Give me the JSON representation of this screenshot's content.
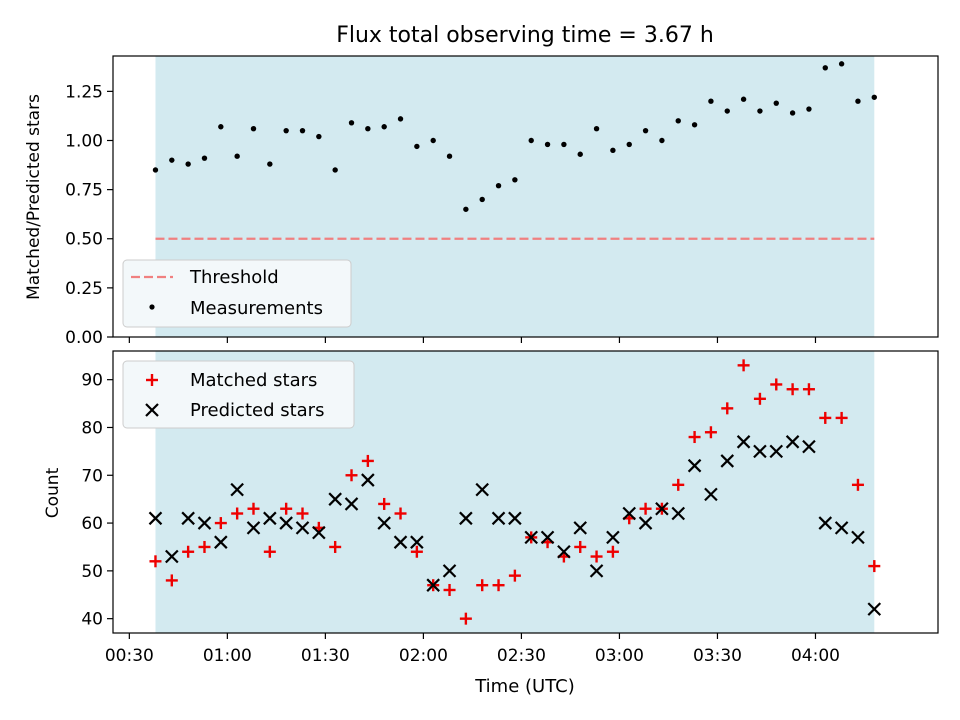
{
  "title": "Flux total observing time = 3.67 h",
  "xlabel": "Time (UTC)",
  "xticks": [
    "00:30",
    "01:00",
    "01:30",
    "02:00",
    "02:30",
    "03:00",
    "03:30",
    "04:00"
  ],
  "colors": {
    "band": "#d3eaf0",
    "threshold": "#f08080",
    "measurements": "#000000",
    "matched": "#ee0000",
    "predicted": "#000000"
  },
  "chart_data": [
    {
      "type": "scatter",
      "ylabel": "Matched/Predicted stars",
      "ylim": [
        0,
        1.43
      ],
      "yticks": [
        "0.00",
        "0.25",
        "0.50",
        "0.75",
        "1.00",
        "1.25"
      ],
      "legend_position": "lower-left",
      "legend": [
        {
          "label": "Threshold",
          "style": "dashed-line"
        },
        {
          "label": "Measurements",
          "style": "dot"
        }
      ],
      "threshold": 0.5,
      "shaded_range_hh_mm": [
        "00:38",
        "04:18"
      ],
      "series": [
        {
          "name": "Measurements",
          "x_time": [
            "00:38",
            "00:43",
            "00:48",
            "00:53",
            "00:58",
            "01:03",
            "01:08",
            "01:13",
            "01:18",
            "01:23",
            "01:28",
            "01:33",
            "01:38",
            "01:43",
            "01:48",
            "01:53",
            "01:58",
            "02:03",
            "02:08",
            "02:13",
            "02:18",
            "02:23",
            "02:28",
            "02:33",
            "02:38",
            "02:43",
            "02:48",
            "02:53",
            "02:58",
            "03:03",
            "03:08",
            "03:13",
            "03:18",
            "03:23",
            "03:28",
            "03:33",
            "03:38",
            "03:43",
            "03:48",
            "03:53",
            "03:58",
            "04:03",
            "04:08",
            "04:13",
            "04:18"
          ],
          "y": [
            0.85,
            0.9,
            0.88,
            0.91,
            1.07,
            0.92,
            1.06,
            0.88,
            1.05,
            1.05,
            1.02,
            0.85,
            1.09,
            1.06,
            1.07,
            1.11,
            0.97,
            1.0,
            0.92,
            0.65,
            0.7,
            0.77,
            0.8,
            1.0,
            0.98,
            0.98,
            0.93,
            1.06,
            0.95,
            0.98,
            1.05,
            1.0,
            1.1,
            1.08,
            1.2,
            1.15,
            1.21,
            1.15,
            1.19,
            1.14,
            1.16,
            1.37,
            1.39,
            1.2,
            1.22
          ]
        }
      ]
    },
    {
      "type": "scatter",
      "ylabel": "Count",
      "ylim": [
        37,
        96
      ],
      "yticks": [
        "40",
        "50",
        "60",
        "70",
        "80",
        "90"
      ],
      "legend_position": "upper-left",
      "legend": [
        {
          "label": "Matched stars",
          "style": "plus"
        },
        {
          "label": "Predicted stars",
          "style": "cross"
        }
      ],
      "shaded_range_hh_mm": [
        "00:38",
        "04:18"
      ],
      "series": [
        {
          "name": "Matched stars",
          "x_time": [
            "00:38",
            "00:43",
            "00:48",
            "00:53",
            "00:58",
            "01:03",
            "01:08",
            "01:13",
            "01:18",
            "01:23",
            "01:28",
            "01:33",
            "01:38",
            "01:43",
            "01:48",
            "01:53",
            "01:58",
            "02:03",
            "02:08",
            "02:13",
            "02:18",
            "02:23",
            "02:28",
            "02:33",
            "02:38",
            "02:43",
            "02:48",
            "02:53",
            "02:58",
            "03:03",
            "03:08",
            "03:13",
            "03:18",
            "03:23",
            "03:28",
            "03:33",
            "03:38",
            "03:43",
            "03:48",
            "03:53",
            "03:58",
            "04:03",
            "04:08",
            "04:13",
            "04:18"
          ],
          "y": [
            52,
            48,
            54,
            55,
            60,
            62,
            63,
            54,
            63,
            62,
            59,
            55,
            70,
            73,
            64,
            62,
            54,
            47,
            46,
            40,
            47,
            47,
            49,
            57,
            56,
            53,
            55,
            53,
            54,
            61,
            63,
            63,
            68,
            78,
            79,
            84,
            93,
            86,
            89,
            88,
            88,
            82,
            82,
            68,
            51
          ]
        },
        {
          "name": "Predicted stars",
          "x_time": [
            "00:38",
            "00:43",
            "00:48",
            "00:53",
            "00:58",
            "01:03",
            "01:08",
            "01:13",
            "01:18",
            "01:23",
            "01:28",
            "01:33",
            "01:38",
            "01:43",
            "01:48",
            "01:53",
            "01:58",
            "02:03",
            "02:08",
            "02:13",
            "02:18",
            "02:23",
            "02:28",
            "02:33",
            "02:38",
            "02:43",
            "02:48",
            "02:53",
            "02:58",
            "03:03",
            "03:08",
            "03:13",
            "03:18",
            "03:23",
            "03:28",
            "03:33",
            "03:38",
            "03:43",
            "03:48",
            "03:53",
            "03:58",
            "04:03",
            "04:08",
            "04:13",
            "04:18"
          ],
          "y": [
            61,
            53,
            61,
            60,
            56,
            67,
            59,
            61,
            60,
            59,
            58,
            65,
            64,
            69,
            60,
            56,
            56,
            47,
            50,
            61,
            67,
            61,
            61,
            57,
            57,
            54,
            59,
            50,
            57,
            62,
            60,
            63,
            62,
            72,
            66,
            73,
            77,
            75,
            75,
            77,
            76,
            60,
            59,
            57,
            42
          ]
        }
      ]
    }
  ]
}
